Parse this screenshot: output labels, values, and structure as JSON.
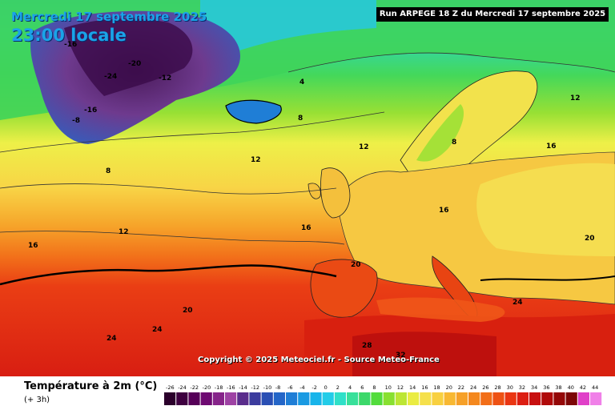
{
  "header": {
    "date_label": "Mercredi 17 septembre 2025",
    "time_label": "23:00 locale",
    "run_label": "Run ARPEGE 18 Z du Mercredi 17 septembre 2025"
  },
  "map": {
    "copyright": "Copyright © 2025 Meteociel.fr - Source Meteo-France",
    "labels": [
      "-24",
      "-20",
      "-16",
      "-12",
      "-8",
      "4",
      "8",
      "12",
      "16",
      "20",
      "24",
      "28",
      "32"
    ]
  },
  "legend": {
    "title": "Température à 2m (°C)",
    "subtitle": "(+ 3h)",
    "ticks": [
      "-26",
      "-24",
      "-22",
      "-20",
      "-18",
      "-16",
      "-14",
      "-12",
      "-10",
      "-8",
      "-6",
      "-4",
      "-2",
      "0",
      "2",
      "4",
      "6",
      "8",
      "10",
      "12",
      "14",
      "16",
      "18",
      "20",
      "22",
      "24",
      "26",
      "28",
      "30",
      "32",
      "34",
      "36",
      "38",
      "40",
      "42",
      "44"
    ],
    "colors": [
      "#2b002b",
      "#3e0040",
      "#560058",
      "#6e0a72",
      "#86248a",
      "#9e42a4",
      "#5a2d8c",
      "#3c3c9e",
      "#2a4fb4",
      "#2466c8",
      "#1f7ed6",
      "#1a9ae2",
      "#18b4ea",
      "#22cce8",
      "#2fe0c8",
      "#38e09a",
      "#3cd86a",
      "#52dc3c",
      "#88e030",
      "#bce634",
      "#eaec42",
      "#f5e04c",
      "#f8d040",
      "#f8b832",
      "#f6a028",
      "#f4881e",
      "#f26e18",
      "#ee5214",
      "#ea3612",
      "#dc1e12",
      "#c81010",
      "#b00a0a",
      "#940808",
      "#7c0606",
      "#e040c8",
      "#f080e8"
    ]
  }
}
